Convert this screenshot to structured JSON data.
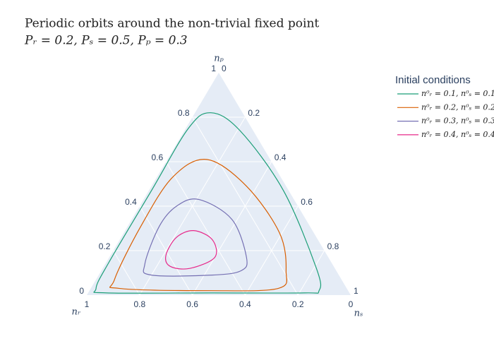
{
  "chart_data": {
    "type": "ternary",
    "title": "Periodic orbits around the non-trivial fixed point",
    "subtitle": "Pᵣ = 0.2, Pₛ = 0.5, Pₚ = 0.3",
    "a_title": "nₚ",
    "b_title": "nᵣ",
    "c_title": "nₛ",
    "aticks": [
      0,
      0.2,
      0.4,
      0.6,
      0.8,
      1
    ],
    "bticks": [
      0,
      0.2,
      0.4,
      0.6,
      0.8,
      1
    ],
    "cticks": [
      0,
      0.2,
      0.4,
      0.6,
      0.8,
      1
    ],
    "grid": true,
    "legend_title": "Initial conditions",
    "series": [
      {
        "name": "n⁰ᵣ = 0.1, n⁰ₛ = 0.1",
        "color": "#1b9e77",
        "np": [
          0.82,
          0.74,
          0.47,
          0.12,
          0.02,
          0.01,
          0.01,
          0.01,
          0.03,
          0.15,
          0.47,
          0.75
        ],
        "nr": [
          0.12,
          0.05,
          0.02,
          0.07,
          0.11,
          0.17,
          0.52,
          0.92,
          0.95,
          0.84,
          0.52,
          0.24
        ],
        "ns": [
          0.06,
          0.21,
          0.51,
          0.81,
          0.87,
          0.82,
          0.47,
          0.07,
          0.02,
          0.01,
          0.01,
          0.01
        ]
      },
      {
        "name": "n⁰ᵣ = 0.2, n⁰ₛ = 0.2",
        "color": "#d95f02",
        "np": [
          0.61,
          0.49,
          0.28,
          0.11,
          0.03,
          0.02,
          0.03,
          0.07,
          0.31,
          0.53
        ],
        "nr": [
          0.24,
          0.15,
          0.13,
          0.19,
          0.26,
          0.52,
          0.86,
          0.86,
          0.64,
          0.41
        ],
        "ns": [
          0.15,
          0.36,
          0.59,
          0.7,
          0.71,
          0.46,
          0.11,
          0.07,
          0.05,
          0.06
        ]
      },
      {
        "name": "n⁰ᵣ = 0.3, n⁰ₛ = 0.3",
        "color": "#7570b3",
        "np": [
          0.43,
          0.34,
          0.17,
          0.11,
          0.09,
          0.09,
          0.14,
          0.31,
          0.4
        ],
        "nr": [
          0.36,
          0.28,
          0.31,
          0.36,
          0.48,
          0.71,
          0.71,
          0.57,
          0.46
        ],
        "ns": [
          0.21,
          0.38,
          0.52,
          0.53,
          0.43,
          0.2,
          0.15,
          0.12,
          0.14
        ]
      },
      {
        "name": "n⁰ᵣ = 0.4, n⁰ₛ = 0.4",
        "color": "#e7298a",
        "np": [
          0.29,
          0.25,
          0.17,
          0.12,
          0.13,
          0.18,
          0.26
        ],
        "nr": [
          0.45,
          0.4,
          0.43,
          0.55,
          0.62,
          0.61,
          0.53
        ],
        "ns": [
          0.26,
          0.35,
          0.4,
          0.33,
          0.25,
          0.21,
          0.21
        ]
      }
    ]
  }
}
